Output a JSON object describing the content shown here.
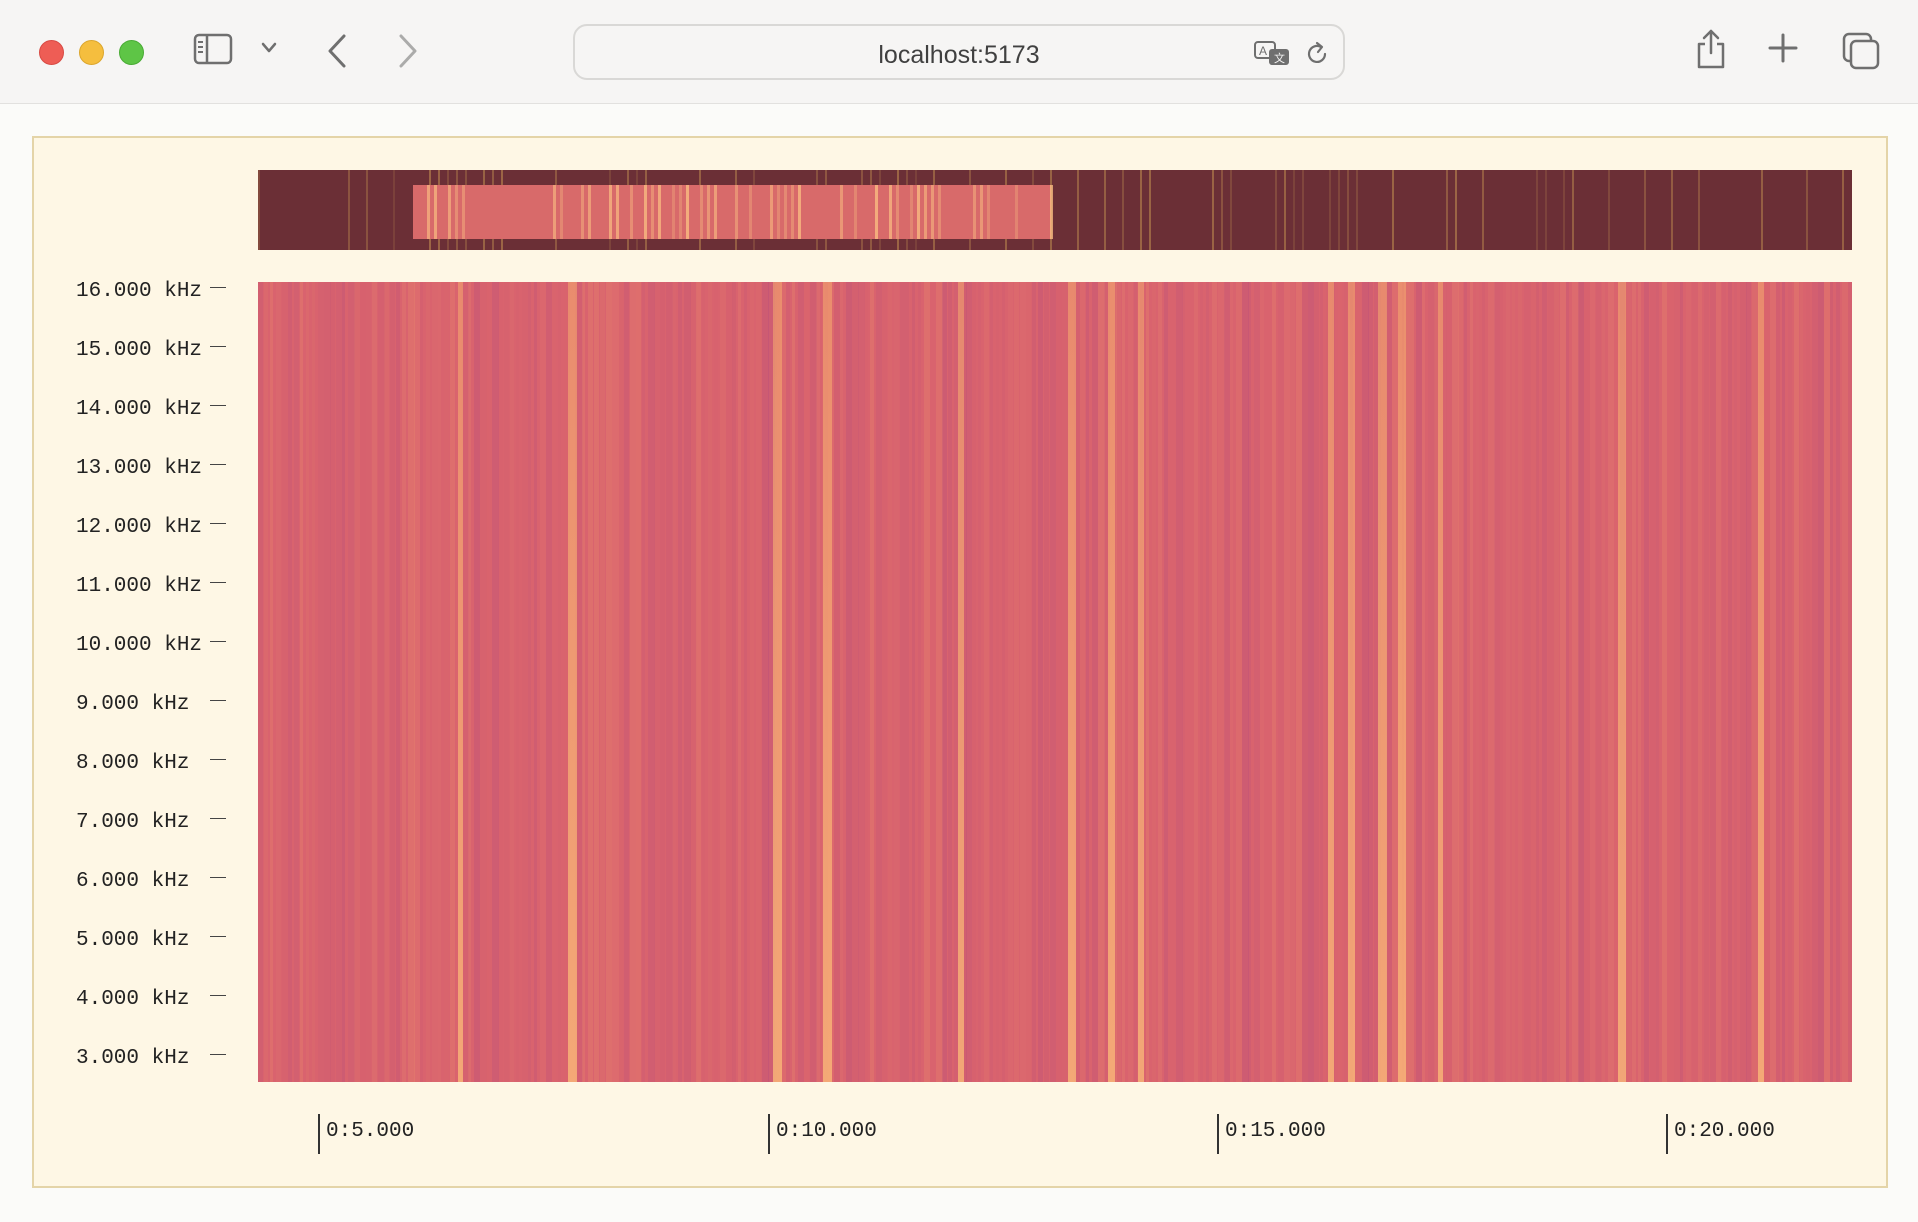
{
  "browser": {
    "url": "localhost:5173",
    "icons": [
      "sidebar-icon",
      "chevron-down-icon",
      "back-icon",
      "forward-icon",
      "translate-icon",
      "reload-icon",
      "share-icon",
      "plus-icon",
      "tabs-icon"
    ]
  },
  "spectrogram": {
    "y_axis_labels": [
      "16.000 kHz",
      "15.000 kHz",
      "14.000 kHz",
      "13.000 kHz",
      "12.000 kHz",
      "11.000 kHz",
      "10.000 kHz",
      "9.000 kHz",
      "8.000 kHz",
      "7.000 kHz",
      "6.000 kHz",
      "5.000 kHz",
      "4.000 kHz",
      "3.000 kHz"
    ],
    "x_axis_labels": [
      "0:5.000",
      "0:10.000",
      "0:15.000",
      "0:20.000"
    ],
    "colors": {
      "background": "#fef7e5",
      "spectrogram_base": "#d9636e",
      "minimap_base": "#6b2f36",
      "selection": "#d86a6a"
    }
  }
}
